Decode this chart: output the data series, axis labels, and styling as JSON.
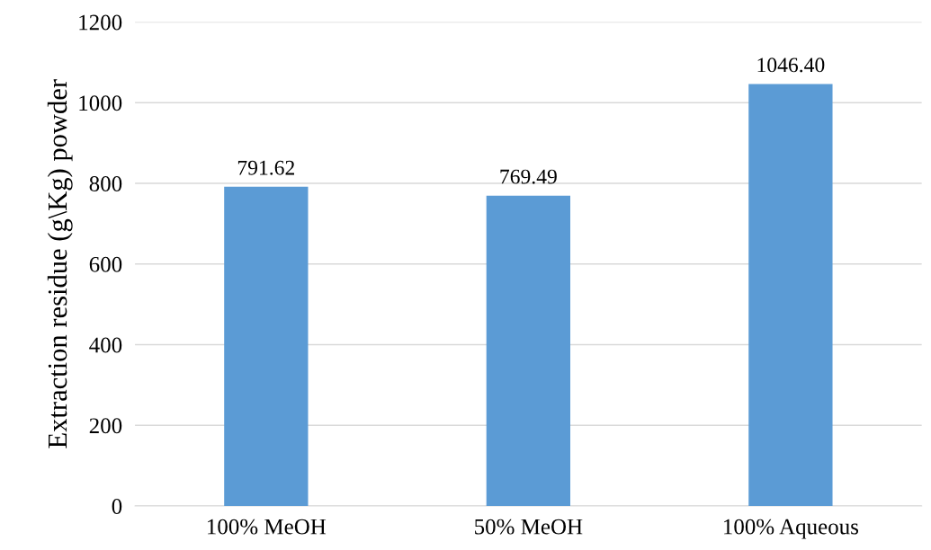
{
  "chart_data": {
    "type": "bar",
    "ylabel": "Extraction residue (g\\Kg) powder",
    "categories": [
      "100% MeOH",
      "50% MeOH",
      "100% Aqueous"
    ],
    "values": [
      791.62,
      769.49,
      1046.4
    ],
    "value_labels": [
      "791.62",
      "769.49",
      "1046.40"
    ],
    "color": "#5b9bd5",
    "ylim": [
      0,
      1200
    ],
    "yticks": [
      0,
      200,
      400,
      600,
      800,
      1000,
      1200
    ],
    "grid": "y",
    "legend": false
  }
}
